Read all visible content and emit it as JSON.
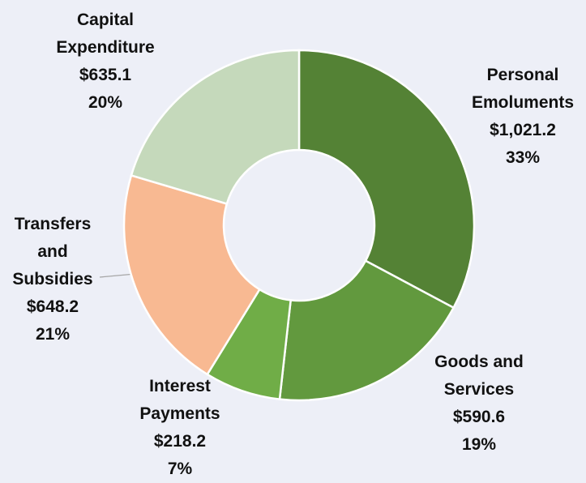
{
  "chart_data": {
    "type": "donut",
    "categories": [
      "Personal Emoluments",
      "Goods and Services",
      "Interest Payments",
      "Transfers and Subsidies",
      "Capital Expenditure"
    ],
    "values": [
      1021.2,
      590.6,
      218.2,
      648.2,
      635.1
    ],
    "value_labels": [
      "$1,021.2",
      "$590.6",
      "$218.2",
      "$648.2",
      "$635.1"
    ],
    "percent_labels": [
      "33%",
      "19%",
      "7%",
      "21%",
      "20%"
    ],
    "colors": [
      "#548235",
      "#62993e",
      "#70ad47",
      "#f8b992",
      "#c5d9bb"
    ]
  }
}
